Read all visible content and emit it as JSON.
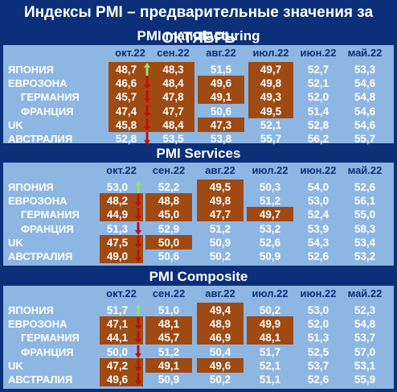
{
  "title": "Индексы PMI – предварительные значения за ОКТЯБРЬ",
  "colors": {
    "background": "#0b2f78",
    "panel": "#8eb6e3",
    "highlight": "#9e4a12",
    "arrow_up": "#8fe07a",
    "arrow_down": "#c0100c"
  },
  "chart_data": [
    {
      "type": "table",
      "title": "PMI manufacturing",
      "columns": [
        "окт.22",
        "сен.22",
        "авг.22",
        "июл.22",
        "июн.22",
        "май.22"
      ],
      "rows": [
        {
          "label": "ЯПОНИЯ",
          "indent": false,
          "values": [
            "48,7",
            "48,3",
            "51,5",
            "49,7",
            "52,7",
            "53,3"
          ],
          "highlight": [
            true,
            true,
            false,
            true,
            false,
            false
          ],
          "arrow": "up"
        },
        {
          "label": "ЕВРОЗОНА",
          "indent": false,
          "values": [
            "46,6",
            "48,4",
            "49,6",
            "49,8",
            "52,1",
            "54,6"
          ],
          "highlight": [
            true,
            true,
            true,
            true,
            false,
            false
          ],
          "arrow": "down"
        },
        {
          "label": "ГЕРМАНИЯ",
          "indent": true,
          "values": [
            "45,7",
            "47,8",
            "49,1",
            "49,3",
            "52,0",
            "54,8"
          ],
          "highlight": [
            true,
            true,
            true,
            true,
            false,
            false
          ],
          "arrow": "down"
        },
        {
          "label": "ФРАНЦИЯ",
          "indent": true,
          "values": [
            "47,4",
            "47,7",
            "50,6",
            "49,5",
            "51,4",
            "54,6"
          ],
          "highlight": [
            true,
            true,
            false,
            true,
            false,
            false
          ],
          "arrow": "down"
        },
        {
          "label": "UK",
          "indent": false,
          "values": [
            "45,8",
            "48,4",
            "47,3",
            "52,1",
            "52,8",
            "54,6"
          ],
          "highlight": [
            true,
            true,
            true,
            false,
            false,
            false
          ],
          "arrow": "down"
        },
        {
          "label": "АВСТРАЛИЯ",
          "indent": false,
          "values": [
            "52,8",
            "53,5",
            "53,8",
            "55,7",
            "56,2",
            "55,7"
          ],
          "highlight": [
            false,
            false,
            false,
            false,
            false,
            false
          ],
          "arrow": "down"
        }
      ]
    },
    {
      "type": "table",
      "title": "PMI Services",
      "columns": [
        "окт.22",
        "сен.22",
        "авг.22",
        "июл.22",
        "июн.22",
        "май.22"
      ],
      "rows": [
        {
          "label": "ЯПОНИЯ",
          "indent": false,
          "values": [
            "53,0",
            "52,2",
            "49,5",
            "50,3",
            "54,0",
            "52,6"
          ],
          "highlight": [
            false,
            false,
            true,
            false,
            false,
            false
          ],
          "arrow": "up"
        },
        {
          "label": "ЕВРОЗОНА",
          "indent": false,
          "values": [
            "48,2",
            "48,8",
            "49,8",
            "51,2",
            "53,0",
            "56,1"
          ],
          "highlight": [
            true,
            true,
            true,
            false,
            false,
            false
          ],
          "arrow": "down"
        },
        {
          "label": "ГЕРМАНИЯ",
          "indent": true,
          "values": [
            "44,9",
            "45,0",
            "47,7",
            "49,7",
            "52,4",
            "55,0"
          ],
          "highlight": [
            true,
            true,
            true,
            true,
            false,
            false
          ],
          "arrow": "down"
        },
        {
          "label": "ФРАНЦИЯ",
          "indent": true,
          "values": [
            "51,3",
            "52,9",
            "51,2",
            "53,2",
            "53,9",
            "58,3"
          ],
          "highlight": [
            false,
            false,
            false,
            false,
            false,
            false
          ],
          "arrow": "down"
        },
        {
          "label": "UK",
          "indent": false,
          "values": [
            "47,5",
            "50,0",
            "50,9",
            "52,6",
            "54,3",
            "53,4"
          ],
          "highlight": [
            true,
            true,
            false,
            false,
            false,
            false
          ],
          "arrow": "down"
        },
        {
          "label": "АВСТРАЛИЯ",
          "indent": false,
          "values": [
            "49,0",
            "50,6",
            "50,2",
            "50,9",
            "52,6",
            "53,2"
          ],
          "highlight": [
            true,
            false,
            false,
            false,
            false,
            false
          ],
          "arrow": "down"
        }
      ]
    },
    {
      "type": "table",
      "title": "PMI Composite",
      "columns": [
        "окт.22",
        "сен.22",
        "авг.22",
        "июл.22",
        "июн.22",
        "май.22"
      ],
      "rows": [
        {
          "label": "ЯПОНИЯ",
          "indent": false,
          "values": [
            "51,7",
            "51,0",
            "49,4",
            "50,2",
            "53,0",
            "52,3"
          ],
          "highlight": [
            false,
            false,
            true,
            false,
            false,
            false
          ],
          "arrow": "up"
        },
        {
          "label": "ЕВРОЗОНА",
          "indent": false,
          "values": [
            "47,1",
            "48,1",
            "48,9",
            "49,9",
            "52,0",
            "54,8"
          ],
          "highlight": [
            true,
            true,
            true,
            true,
            false,
            false
          ],
          "arrow": "down"
        },
        {
          "label": "ГЕРМАНИЯ",
          "indent": true,
          "values": [
            "44,1",
            "45,7",
            "46,9",
            "48,1",
            "51,3",
            "53,7"
          ],
          "highlight": [
            true,
            true,
            true,
            true,
            false,
            false
          ],
          "arrow": "down"
        },
        {
          "label": "ФРАНЦИЯ",
          "indent": true,
          "values": [
            "50,0",
            "51,2",
            "50,4",
            "51,7",
            "52,5",
            "57,0"
          ],
          "highlight": [
            false,
            false,
            false,
            false,
            false,
            false
          ],
          "arrow": "down"
        },
        {
          "label": "UK",
          "indent": false,
          "values": [
            "47,2",
            "49,1",
            "49,6",
            "52,1",
            "53,7",
            "53,1"
          ],
          "highlight": [
            true,
            true,
            true,
            false,
            false,
            false
          ],
          "arrow": "down"
        },
        {
          "label": "АВСТРАЛИЯ",
          "indent": false,
          "values": [
            "49,6",
            "50,9",
            "50,2",
            "51,1",
            "52,6",
            "55,9"
          ],
          "highlight": [
            true,
            false,
            false,
            false,
            false,
            false
          ],
          "arrow": "down"
        }
      ]
    }
  ]
}
